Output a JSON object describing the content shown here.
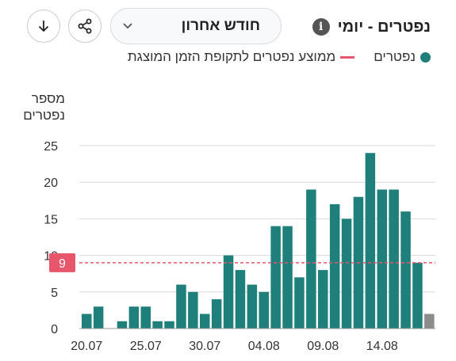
{
  "header": {
    "title": "נפטרים - יומי",
    "info_icon": "i",
    "period_select": "חודש אחרון",
    "share_icon": "share-icon",
    "download_icon": "download-icon"
  },
  "legend": {
    "deaths_label": "נפטרים",
    "average_label": "ממוצע נפטרים לתקופת הזמן המוצגת"
  },
  "colors": {
    "bar": "#1f7f7a",
    "bar_last": "#8c8c8c",
    "average": "#e8566c"
  },
  "chart_data": {
    "type": "bar",
    "ylabel": "מספר נפטרים",
    "ylim": [
      0,
      25
    ],
    "yticks": [
      0,
      5,
      10,
      15,
      20,
      25
    ],
    "xtick_labels": [
      "20.07",
      "25.07",
      "30.07",
      "04.08",
      "09.08",
      "14.08"
    ],
    "categories": [
      "20.07",
      "21.07",
      "22.07",
      "23.07",
      "24.07",
      "25.07",
      "26.07",
      "27.07",
      "28.07",
      "29.07",
      "30.07",
      "31.07",
      "01.08",
      "02.08",
      "03.08",
      "04.08",
      "05.08",
      "06.08",
      "07.08",
      "08.08",
      "09.08",
      "10.08",
      "11.08",
      "12.08",
      "13.08",
      "14.08",
      "15.08",
      "16.08",
      "17.08",
      "18.08"
    ],
    "values": [
      2,
      3,
      0,
      1,
      3,
      3,
      1,
      1,
      6,
      5,
      2,
      4,
      10,
      8,
      6,
      5,
      14,
      14,
      7,
      19,
      8,
      17,
      15,
      18,
      24,
      19,
      19,
      16,
      9,
      2
    ],
    "average": 9,
    "average_label": "9",
    "grid": true
  }
}
